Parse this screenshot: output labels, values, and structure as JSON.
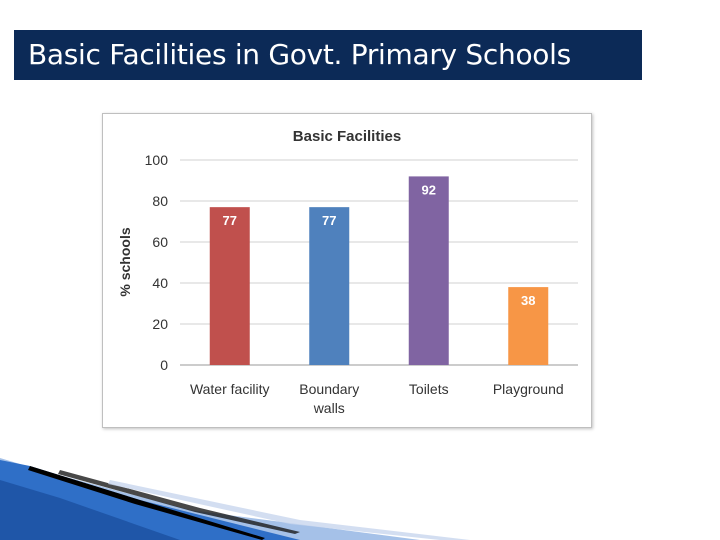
{
  "slide": {
    "title": "Basic Facilities in Govt. Primary Schools",
    "title_bar_color": "#0c2a57"
  },
  "chart_data": {
    "type": "bar",
    "title": "Basic Facilities",
    "xlabel": "",
    "ylabel": "% schools",
    "ylim": [
      0,
      100
    ],
    "yticks": [
      0,
      20,
      40,
      60,
      80,
      100
    ],
    "grid": true,
    "legend": "none",
    "categories": [
      [
        "Water facility"
      ],
      [
        "Boundary",
        "walls"
      ],
      [
        "Toilets"
      ],
      [
        "Playground"
      ]
    ],
    "values": [
      77,
      77,
      92,
      38
    ],
    "data_labels": [
      "77",
      "77",
      "92",
      "38"
    ],
    "colors": [
      "#c0504d",
      "#4f81bd",
      "#8064a2",
      "#f79646"
    ]
  }
}
